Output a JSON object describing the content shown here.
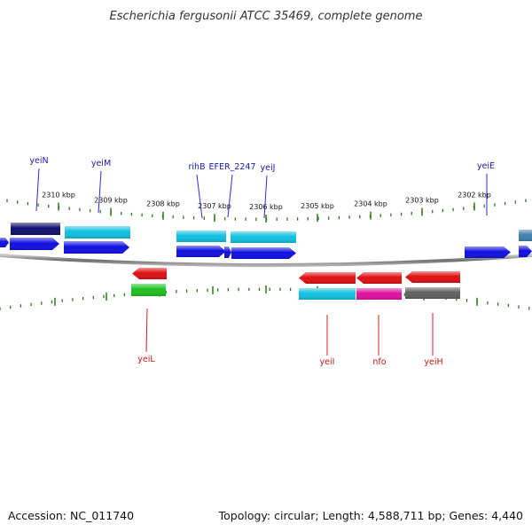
{
  "title": "Escherichia fergusonii ATCC 35469, complete genome",
  "footer": {
    "accession": "Accession: NC_011740",
    "summary": "Topology: circular; Length: 4,588,711 bp; Genes: 4,440"
  },
  "colors": {
    "forward_label": "#1a1aa8",
    "reverse_label": "#c81414",
    "tick": "#2a7a1a",
    "backbone": "#8a8a8a",
    "label_line_forward": "#2a2ad0",
    "label_line_reverse": "#d02020"
  },
  "scale_ticks": [
    {
      "label": "2310 kbp"
    },
    {
      "label": "2309 kbp"
    },
    {
      "label": "2308 kbp"
    },
    {
      "label": "2307 kbp"
    },
    {
      "label": "2306 kbp"
    },
    {
      "label": "2305 kbp"
    },
    {
      "label": "2304 kbp"
    },
    {
      "label": "2303 kbp"
    },
    {
      "label": "2302 kbp"
    }
  ],
  "forward_labels": [
    {
      "label": "yeiN"
    },
    {
      "label": "yeiM"
    },
    {
      "label": "rihB"
    },
    {
      "label": "EFER_2247"
    },
    {
      "label": "yeiJ"
    },
    {
      "label": "yeiE"
    }
  ],
  "reverse_labels": [
    {
      "label": "yeiL"
    },
    {
      "label": "yeiI"
    },
    {
      "label": "nfo"
    },
    {
      "label": "yeiH"
    }
  ],
  "feature_colors": {
    "cds_forward": "#1010e0",
    "cds_reverse": "#e01010",
    "gene_navy": "#101070",
    "gene_cyan": "#10c0e0",
    "gene_steel": "#4080b0",
    "gene_green": "#20c020",
    "gene_magenta": "#e010a0",
    "gene_gray": "#606060"
  }
}
